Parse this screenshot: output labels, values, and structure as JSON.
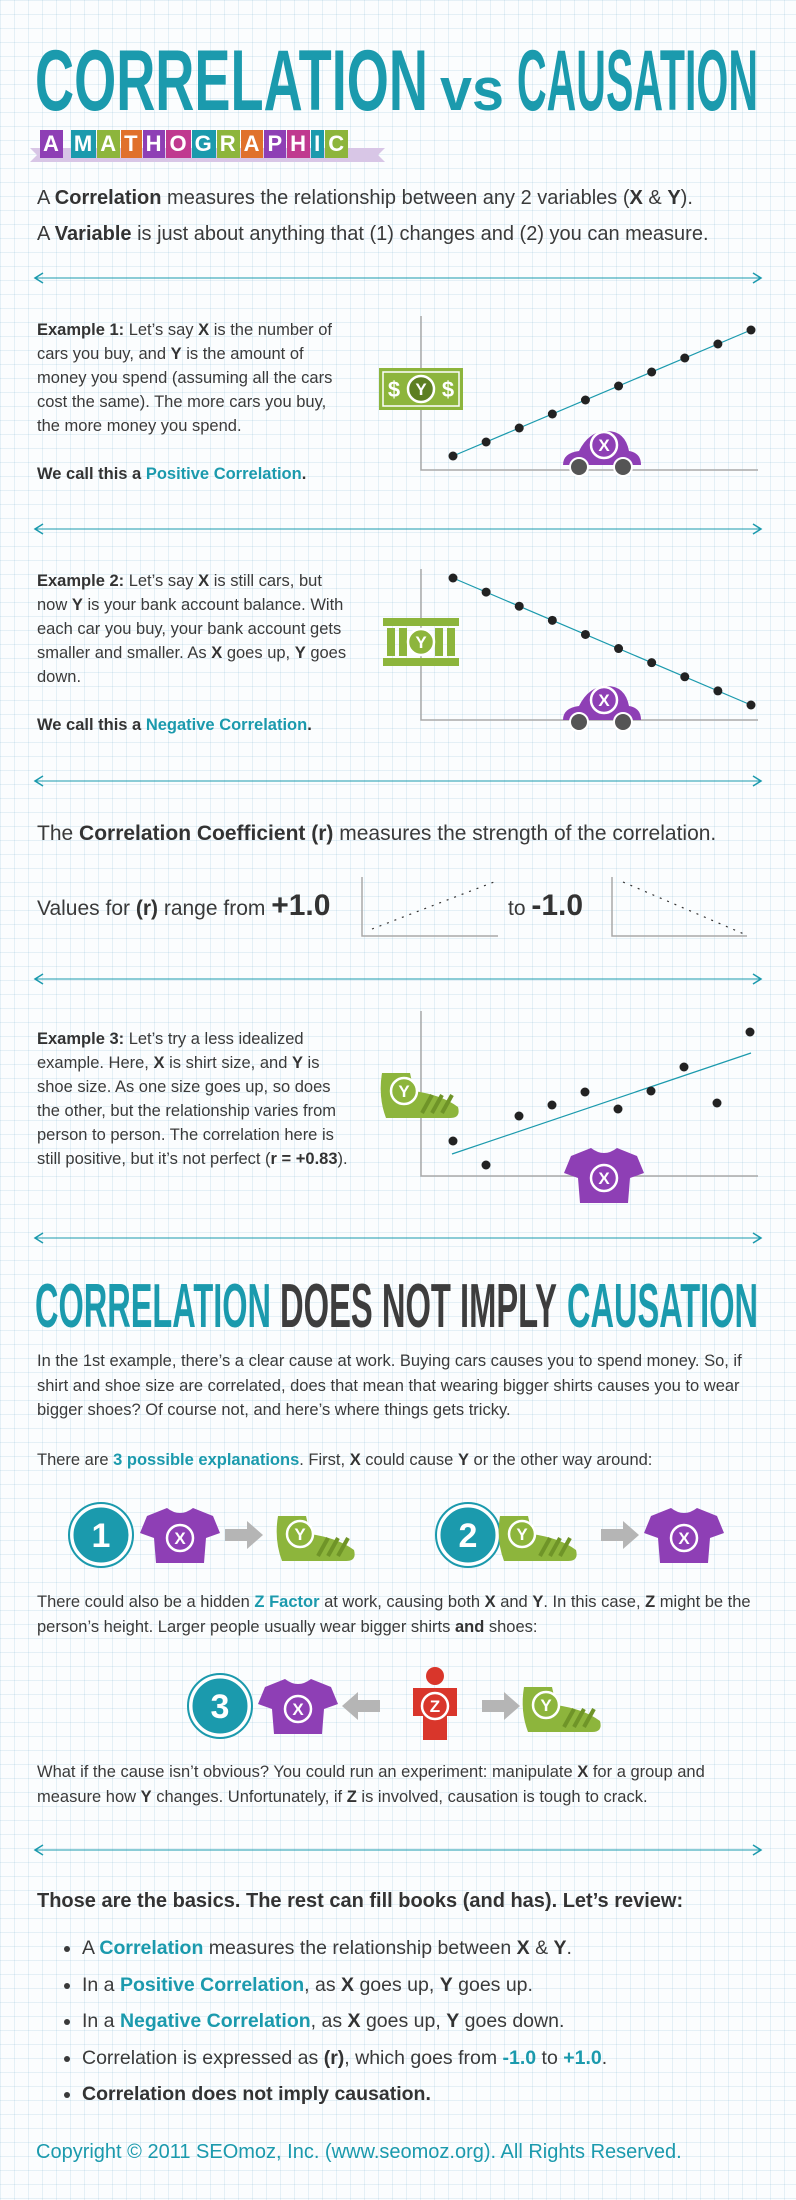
{
  "header": {
    "title": [
      "CORRELATION",
      "vs",
      "CAUSATION"
    ],
    "subtitle": "A MATHOGRAPHIC"
  },
  "labels": {
    "x": "X",
    "y": "Y",
    "z": "Z",
    "dollar": "$"
  },
  "intro": [
    [
      "A ",
      "Correlation",
      " measures the relationship between any 2 variables (",
      "X",
      " & ",
      "Y",
      ")."
    ],
    [
      "A ",
      "Variable",
      " is just about anything that (1) changes and (2) you can measure."
    ]
  ],
  "examples": [
    {
      "paragraphs": [
        [
          "Example 1:",
          " Let’s say ",
          "X",
          " is the number of cars you buy, and ",
          "Y",
          " is the amount of money you spend (assuming all the cars cost the same). The more cars you buy, the more money you spend."
        ],
        [
          "We call this a ",
          "Positive Correlation",
          "."
        ]
      ]
    },
    {
      "paragraphs": [
        [
          "Example 2:",
          " Let’s say ",
          "X",
          " is still cars, but now ",
          "Y",
          " is your bank account balance. With each car you buy, your bank account gets smaller and smaller. As ",
          "X",
          " goes up, ",
          "Y",
          " goes down."
        ],
        [
          "We call this a ",
          "Negative Correlation",
          "."
        ]
      ]
    },
    {
      "paragraphs": [
        [
          "Example 3:",
          " Let’s try a less idealized example. Here, ",
          "X",
          " is shirt size, and ",
          "Y",
          " is shoe size. As one size goes up, so does the other, but the relationship varies from person to person. The correlation here is still positive, but it’s not perfect (",
          "r = +0.83",
          ")."
        ]
      ]
    }
  ],
  "coefficient": {
    "sentence": [
      "The ",
      "Correlation Coefficient (r)",
      " measures the strength of the correlation."
    ],
    "range": [
      [
        "Values for ",
        "(r)",
        " range from ",
        "+1.0"
      ],
      [
        "to ",
        "-1.0"
      ]
    ]
  },
  "causation": {
    "heading": [
      "CORRELATION",
      "DOES NOT IMPLY",
      "CAUSATION"
    ],
    "paragraphs": [
      [
        "In the 1st example, there’s a clear cause at work. Buying cars causes you to spend money. So, if shirt and shoe size are correlated, does that mean that wearing bigger shirts causes you to wear bigger shoes? Of course not, and here’s where things gets tricky."
      ],
      [
        "There are ",
        "3 possible explanations",
        ". First, ",
        "X",
        " could cause ",
        "Y",
        " or the other way around:"
      ],
      [
        "There could also be a hidden ",
        "Z Factor",
        " at work, causing both ",
        "X",
        " and ",
        "Y",
        ". In this case, ",
        "Z",
        " might be the person’s height. Larger people usually wear bigger shirts ",
        "and",
        " shoes:"
      ],
      [
        "What if the cause isn’t obvious? You could run an experiment: manipulate ",
        "X",
        " for a group and measure how ",
        "Y",
        " changes. Unfortunately, if ",
        "Z",
        " is involved, causation is tough to crack."
      ]
    ],
    "numbers": [
      "1",
      "2",
      "3"
    ]
  },
  "review": {
    "heading": "Those are the basics. The rest can fill books (and has). Let’s review:",
    "bullets": [
      [
        "A ",
        "Correlation",
        " measures the relationship between ",
        "X",
        " & ",
        "Y",
        "."
      ],
      [
        "In a ",
        "Positive Correlation",
        ", as ",
        "X",
        " goes up, ",
        "Y",
        " goes up."
      ],
      [
        "In a ",
        "Negative Correlation",
        ", as ",
        "X",
        " goes up, ",
        "Y",
        " goes down."
      ],
      [
        "Correlation is expressed as ",
        "(r)",
        ", which goes from ",
        "-1.0",
        " to ",
        "+1.0",
        "."
      ],
      [
        "Correlation does not imply causation."
      ]
    ]
  },
  "footer": {
    "copyright": "Copyright © 2011 SEOmoz, Inc. (www.seomoz.org). All Rights Reserved."
  }
}
